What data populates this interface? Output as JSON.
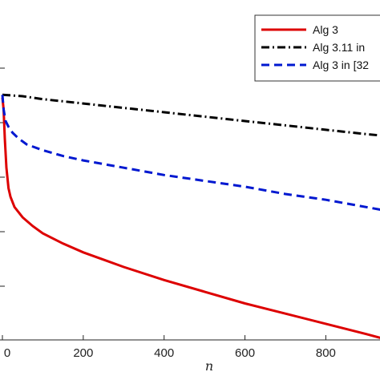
{
  "chart_data": {
    "type": "line",
    "title": "",
    "xlabel": "n",
    "ylabel": "",
    "xlim": [
      0,
      940
    ],
    "ylim": [
      0,
      1
    ],
    "x_ticks": [
      0,
      200,
      400,
      600,
      800
    ],
    "x_tick_labels": [
      "0",
      "200",
      "400",
      "600",
      "800"
    ],
    "grid": false,
    "legend_position": "top-right",
    "series": [
      {
        "name": "Alg 3",
        "color": "#dd0000",
        "style": "solid",
        "x": [
          0,
          3,
          6,
          10,
          15,
          20,
          30,
          50,
          75,
          100,
          150,
          200,
          300,
          400,
          500,
          600,
          700,
          800,
          900,
          940
        ],
        "y": [
          0.94,
          0.9,
          0.8,
          0.7,
          0.63,
          0.6,
          0.565,
          0.53,
          0.5,
          0.475,
          0.44,
          0.41,
          0.36,
          0.315,
          0.275,
          0.235,
          0.2,
          0.165,
          0.13,
          0.115
        ]
      },
      {
        "name": "Alg 3.11 in",
        "color": "#000000",
        "style": "dashdot",
        "x": [
          0,
          50,
          100,
          200,
          300,
          400,
          500,
          600,
          700,
          800,
          900,
          940
        ],
        "y": [
          0.95,
          0.945,
          0.935,
          0.92,
          0.905,
          0.89,
          0.875,
          0.86,
          0.845,
          0.83,
          0.815,
          0.81
        ]
      },
      {
        "name": "Alg 3 in [32",
        "color": "#0018d0",
        "style": "dashed",
        "x": [
          0,
          3,
          8,
          15,
          25,
          40,
          60,
          100,
          150,
          200,
          300,
          400,
          500,
          600,
          700,
          800,
          900,
          940
        ],
        "y": [
          0.95,
          0.9,
          0.86,
          0.84,
          0.82,
          0.8,
          0.78,
          0.76,
          0.74,
          0.725,
          0.7,
          0.675,
          0.655,
          0.635,
          0.61,
          0.59,
          0.565,
          0.555
        ]
      }
    ]
  }
}
